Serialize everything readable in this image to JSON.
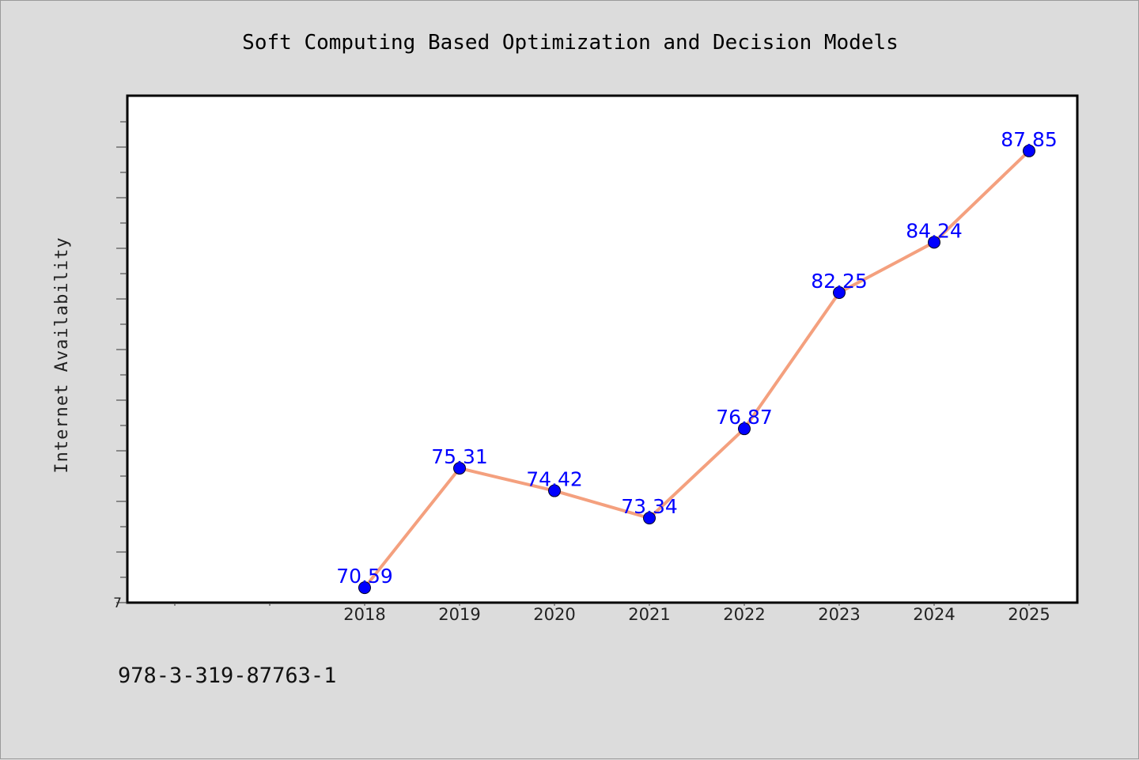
{
  "chart_data": {
    "type": "line",
    "title": "Soft Computing Based Optimization and Decision Models",
    "xlabel": "",
    "ylabel": "Internet Availability",
    "categories": [
      "2018",
      "2019",
      "2020",
      "2021",
      "2022",
      "2023",
      "2024",
      "2025"
    ],
    "series": [
      {
        "values": [
          70.59,
          75.31,
          74.42,
          73.34,
          76.87,
          82.25,
          84.24,
          87.85
        ]
      }
    ],
    "ylim": [
      70,
      90
    ],
    "y_tick_label": "7",
    "grid": false,
    "line_color": "#f4a07e",
    "marker_color": "#0000ff",
    "label_color": "#0000ff"
  },
  "footer": {
    "isbn": "978-3-319-87763-1"
  }
}
